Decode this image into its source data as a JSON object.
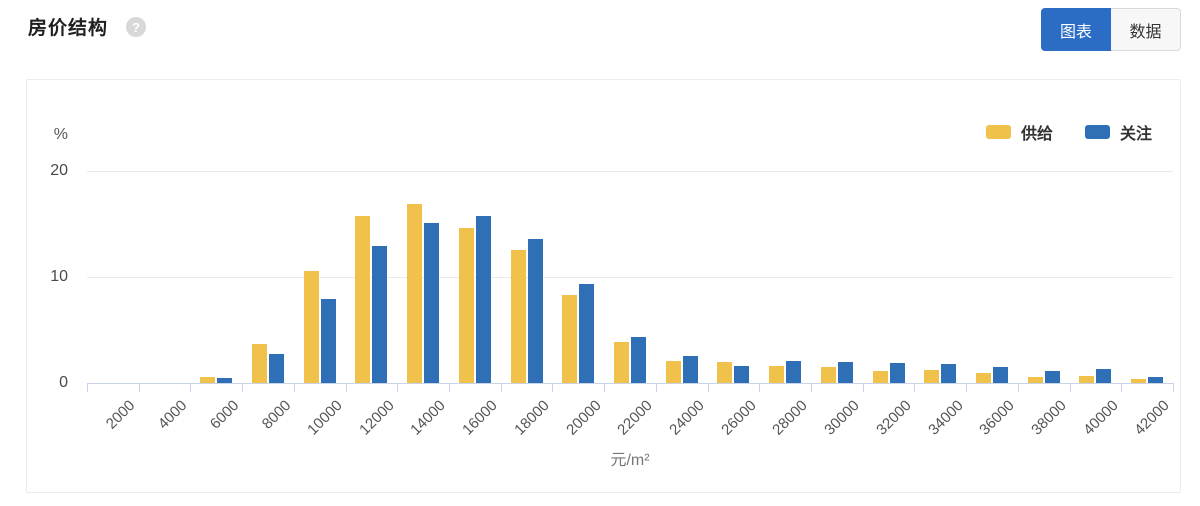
{
  "header": {
    "title": "房价结构",
    "help_icon": "?"
  },
  "view_toggle": {
    "chart_label": "图表",
    "data_label": "数据",
    "active": "图表"
  },
  "colors": {
    "accent_blue": "#2B6CC5",
    "bar_yellow": "#F0C14B",
    "bar_blue": "#2F6FB5",
    "grid": "#e9e9e9",
    "axis": "#c9d4e8"
  },
  "chart_data": {
    "type": "bar",
    "title": "房价结构",
    "y_unit_label": "%",
    "xlabel": "元/m²",
    "ylim": [
      0,
      20
    ],
    "y_ticks": [
      0,
      10,
      20
    ],
    "grid": true,
    "legend_position": "top-right",
    "categories": [
      "2000",
      "4000",
      "6000",
      "8000",
      "10000",
      "12000",
      "14000",
      "16000",
      "18000",
      "20000",
      "22000",
      "24000",
      "26000",
      "28000",
      "30000",
      "32000",
      "34000",
      "36000",
      "38000",
      "40000",
      "42000"
    ],
    "series": [
      {
        "name": "供给",
        "color": "#F0C14B",
        "values": [
          0,
          0,
          0.6,
          3.7,
          10.6,
          15.8,
          16.9,
          14.6,
          12.5,
          8.3,
          3.9,
          2.1,
          2.0,
          1.6,
          1.5,
          1.1,
          1.2,
          0.9,
          0.6,
          0.7,
          0.4
        ]
      },
      {
        "name": "关注",
        "color": "#2F6FB5",
        "values": [
          0,
          0,
          0.5,
          2.7,
          7.9,
          12.9,
          15.1,
          15.8,
          13.6,
          9.3,
          4.3,
          2.5,
          1.6,
          2.1,
          2.0,
          1.9,
          1.8,
          1.5,
          1.1,
          1.3,
          0.6
        ]
      }
    ]
  }
}
